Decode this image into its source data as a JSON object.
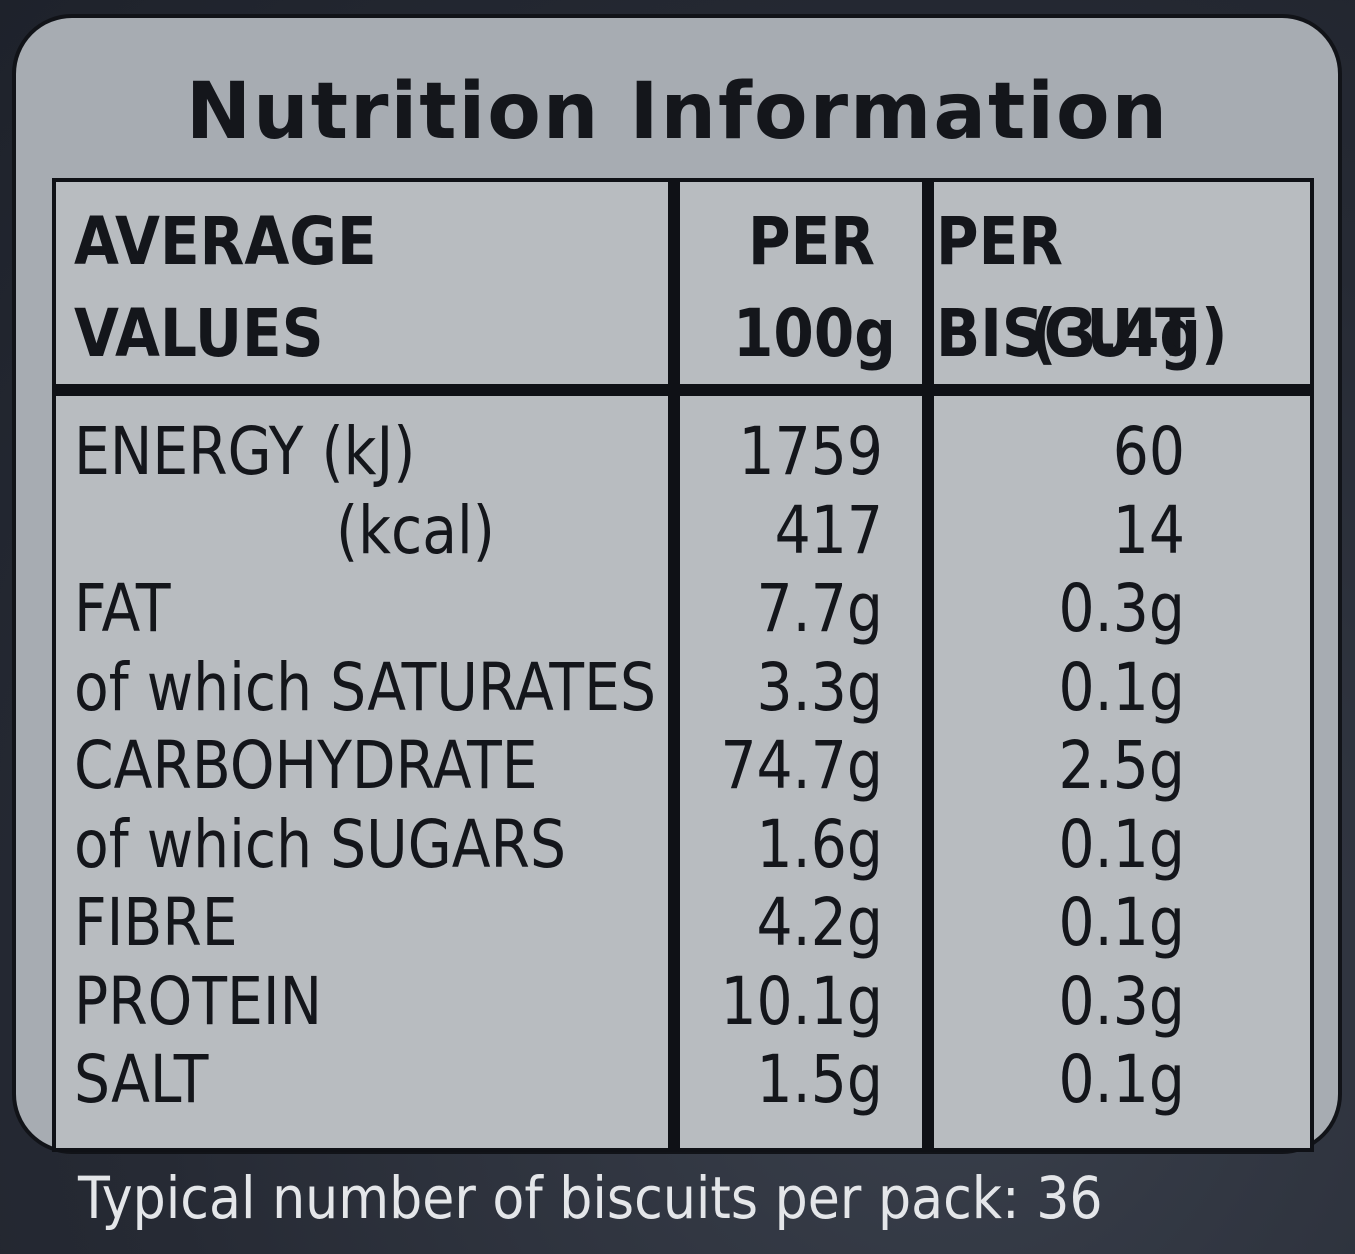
{
  "title": "Nutrition Information",
  "headers": {
    "col1_line1": "AVERAGE",
    "col1_line2": "VALUES",
    "col2_line1": "PER",
    "col2_line2": "100g",
    "col3_line1": "PER BISCUIT",
    "col3_line2": "(3.4g)"
  },
  "rows": [
    {
      "label": "ENERGY (kJ)",
      "per100g": "1759",
      "per_biscuit": "60"
    },
    {
      "label": "(kcal)",
      "per100g": "417",
      "per_biscuit": "14"
    },
    {
      "label": "FAT",
      "per100g": "7.7g",
      "per_biscuit": "0.3g"
    },
    {
      "label": "of which SATURATES",
      "per100g": "3.3g",
      "per_biscuit": "0.1g"
    },
    {
      "label": "CARBOHYDRATE",
      "per100g": "74.7g",
      "per_biscuit": "2.5g"
    },
    {
      "label": "of which SUGARS",
      "per100g": "1.6g",
      "per_biscuit": "0.1g"
    },
    {
      "label": "FIBRE",
      "per100g": "4.2g",
      "per_biscuit": "0.1g"
    },
    {
      "label": "PROTEIN",
      "per100g": "10.1g",
      "per_biscuit": "0.3g"
    },
    {
      "label": "SALT",
      "per100g": "1.5g",
      "per_biscuit": "0.1g"
    }
  ],
  "footer": "Typical number of biscuits per pack: 36",
  "colors": {
    "panel": "#a7acb2",
    "table": "#b8bcc0",
    "ink": "#14161b",
    "background": "#262a34",
    "footer_text": "#e4e6e9"
  }
}
